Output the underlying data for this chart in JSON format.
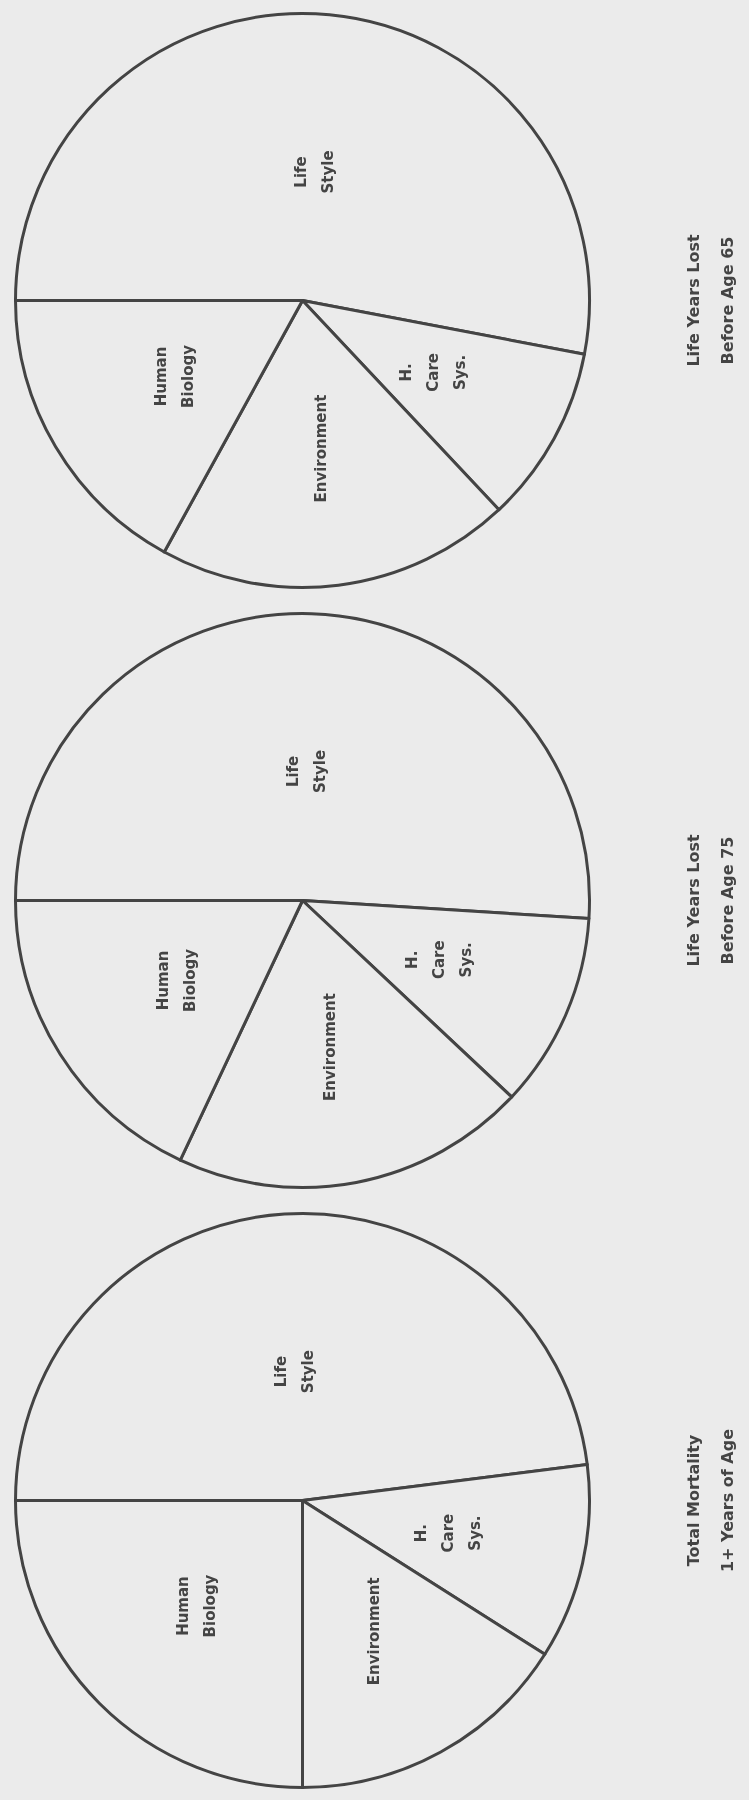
{
  "chart_data": [
    {
      "type": "pie",
      "title": "Total Mortality",
      "subtitle": "1+ Years of Age",
      "categories": [
        "Life Style",
        "H. Care Sys.",
        "Environment",
        "Human Biology"
      ],
      "values": [
        48,
        11,
        16,
        25
      ],
      "colors": [
        "#ebebeb",
        "#ebebeb",
        "#ebebeb",
        "#ebebeb"
      ]
    },
    {
      "type": "pie",
      "title": "Life Years Lost",
      "subtitle": "Before Age 75",
      "categories": [
        "Life Style",
        "H. Care Sys.",
        "Environment",
        "Human Biology"
      ],
      "values": [
        51,
        11,
        20,
        18
      ],
      "colors": [
        "#ebebeb",
        "#ebebeb",
        "#ebebeb",
        "#ebebeb"
      ]
    },
    {
      "type": "pie",
      "title": "Life Years Lost",
      "subtitle": "Before Age 65",
      "categories": [
        "Life Style",
        "H. Care Sys.",
        "Environment",
        "Human Biology"
      ],
      "values": [
        53,
        10,
        20,
        17
      ],
      "colors": [
        "#ebebeb",
        "#ebebeb",
        "#ebebeb",
        "#ebebeb"
      ]
    }
  ]
}
